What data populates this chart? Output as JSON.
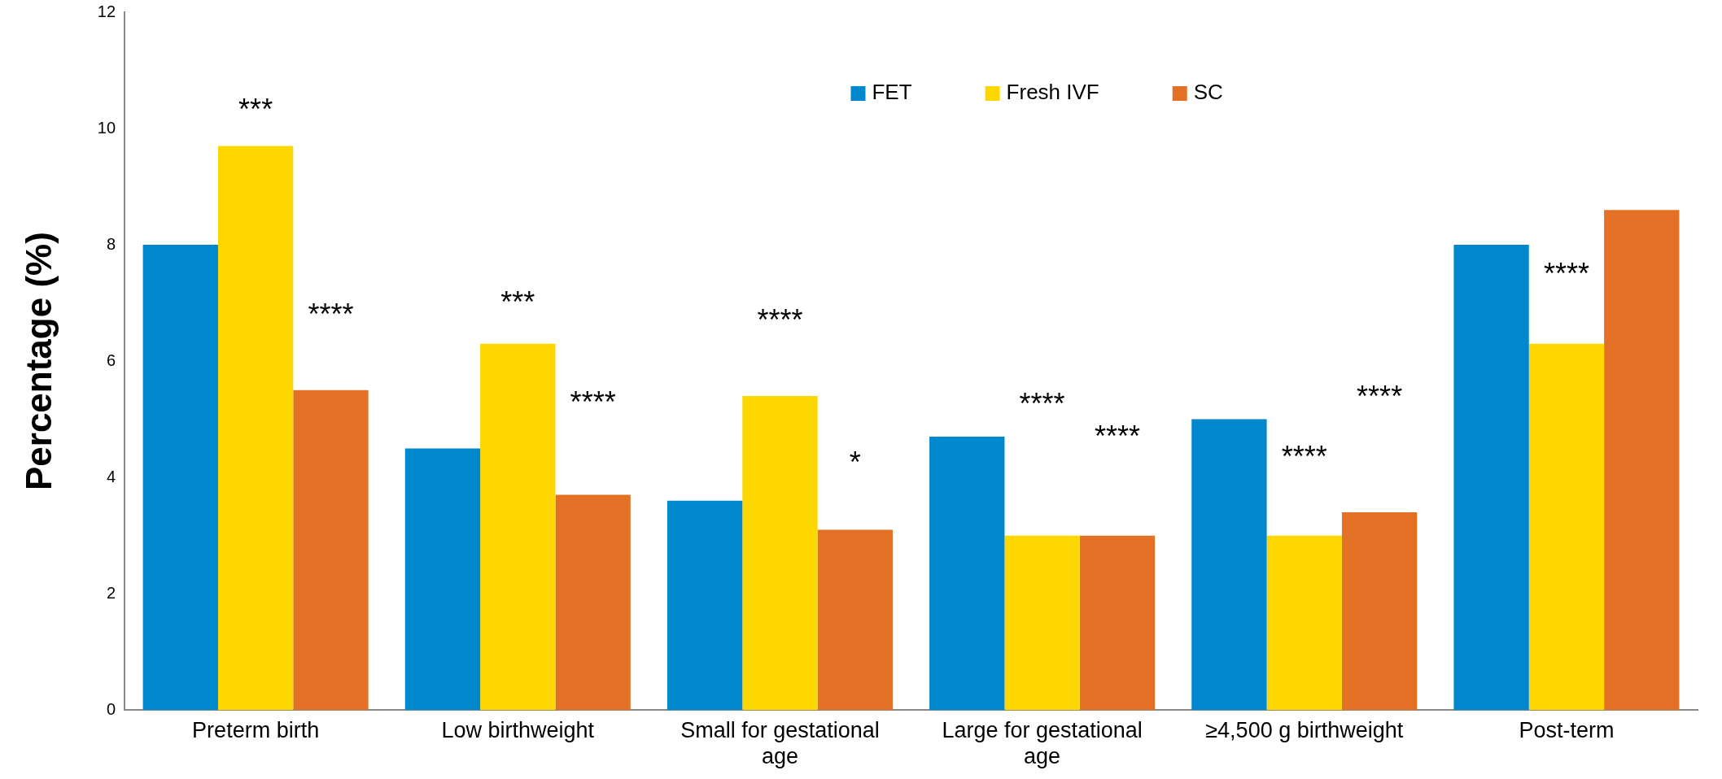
{
  "chart_data": {
    "type": "bar",
    "ylabel": "Percentage (%)",
    "categories": [
      "Preterm birth",
      "Low birthweight",
      "Small for gestational age",
      "Large for gestational age",
      "≥4,500 g birthweight",
      "Post-term"
    ],
    "series": [
      {
        "name": "FET",
        "color": "#0088cf",
        "values": [
          8.0,
          4.5,
          3.6,
          4.7,
          5.0,
          8.0
        ]
      },
      {
        "name": "Fresh IVF",
        "color": "#ffd700",
        "values": [
          9.7,
          6.3,
          5.4,
          3.0,
          3.0,
          6.3
        ]
      },
      {
        "name": "SC",
        "color": "#e37025",
        "values": [
          5.5,
          3.7,
          3.1,
          3.0,
          3.4,
          8.6
        ]
      }
    ],
    "ylim": [
      0,
      12
    ],
    "yticks": [
      0,
      2,
      4,
      6,
      8,
      10,
      12
    ],
    "grid": false,
    "legend": "top",
    "annotations": [
      "***",
      "****",
      "***",
      "****",
      "****",
      "*",
      "****",
      "****",
      "****",
      "****",
      "****"
    ]
  }
}
